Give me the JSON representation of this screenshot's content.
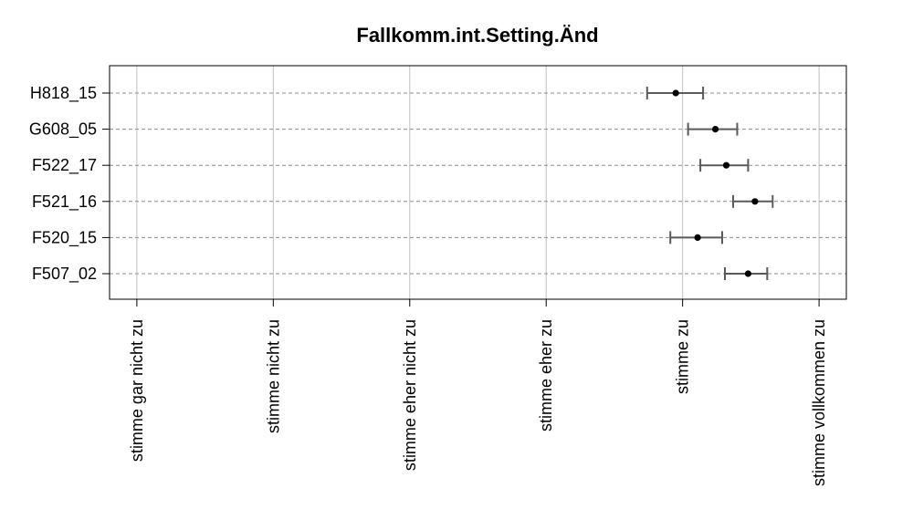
{
  "chart_data": {
    "type": "scatter",
    "title": "Fallkomm.int.Setting.Änd",
    "xlabel": "",
    "ylabel": "",
    "x_tick_labels": [
      "stimme gar nicht zu",
      "stimme nicht zu",
      "stimme eher nicht zu",
      "stimme eher zu",
      "stimme zu",
      "stimme vollkommen zu"
    ],
    "xlim": [
      0.8,
      6.2
    ],
    "categories": [
      "H818_15",
      "G608_05",
      "F522_17",
      "F521_16",
      "F520_15",
      "F507_02"
    ],
    "points": [
      {
        "label": "H818_15",
        "mean": 4.95,
        "lower": 4.74,
        "upper": 5.15
      },
      {
        "label": "G608_05",
        "mean": 5.24,
        "lower": 5.04,
        "upper": 5.4
      },
      {
        "label": "F522_17",
        "mean": 5.32,
        "lower": 5.13,
        "upper": 5.48
      },
      {
        "label": "F521_16",
        "mean": 5.53,
        "lower": 5.37,
        "upper": 5.66
      },
      {
        "label": "F520_15",
        "mean": 5.11,
        "lower": 4.91,
        "upper": 5.29
      },
      {
        "label": "F507_02",
        "mean": 5.48,
        "lower": 5.31,
        "upper": 5.62
      }
    ],
    "grid": true,
    "colors": {
      "point": "#000000",
      "errorbar": "#5a5a5a",
      "gridline": "#bfbfbf",
      "guide": "#8c8c8c"
    }
  }
}
